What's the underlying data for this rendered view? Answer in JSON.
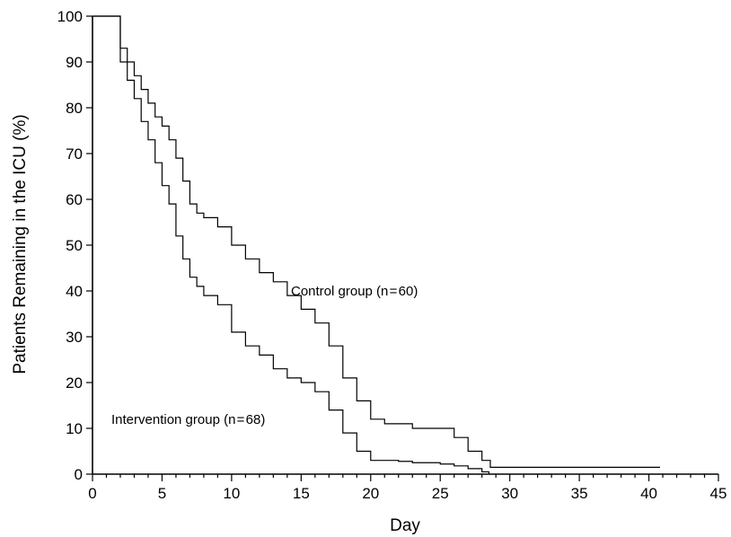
{
  "chart_data": {
    "type": "line",
    "title": "",
    "xlabel": "Day",
    "ylabel": "Patients Remaining in the ICU (%)",
    "xlim": [
      0,
      45
    ],
    "ylim": [
      0,
      100
    ],
    "x_ticks": [
      0,
      5,
      10,
      15,
      20,
      25,
      30,
      35,
      40,
      45
    ],
    "y_ticks": [
      0,
      10,
      20,
      30,
      40,
      50,
      60,
      70,
      80,
      90,
      100
    ],
    "grid": false,
    "legend": "none",
    "annotations": [
      {
        "id": "control",
        "text": "Control group (n = 60)"
      },
      {
        "id": "intervention",
        "text": "Intervention group (n = 68)"
      }
    ],
    "series": [
      {
        "id": "control",
        "step": true,
        "x": [
          0,
          1.5,
          2,
          2.5,
          3,
          3.5,
          4,
          4.5,
          5,
          5.5,
          6,
          6.5,
          7,
          7.5,
          8,
          9,
          10,
          11,
          12,
          13,
          14,
          15,
          16,
          17,
          18,
          19,
          20,
          21,
          22,
          23,
          24,
          25,
          26,
          27,
          28,
          28.6,
          29,
          35,
          40.8
        ],
        "y": [
          100,
          100,
          93,
          90,
          87,
          84,
          81,
          78,
          76,
          73,
          69,
          64,
          59,
          57,
          56,
          54,
          50,
          47,
          44,
          42,
          39,
          36,
          33,
          28,
          21,
          16,
          12,
          11,
          11,
          10,
          10,
          10,
          8,
          5,
          3,
          1.5,
          1.5,
          1.5,
          1.5
        ]
      },
      {
        "id": "intervention",
        "step": true,
        "x": [
          0,
          1.5,
          2,
          2.5,
          3,
          3.5,
          4,
          4.5,
          5,
          5.5,
          6,
          6.5,
          7,
          7.5,
          8,
          9,
          10,
          11,
          12,
          13,
          14,
          15,
          16,
          17,
          18,
          19,
          20,
          21,
          22,
          23,
          24,
          25,
          26,
          27,
          28,
          28.5
        ],
        "y": [
          100,
          100,
          90,
          86,
          82,
          77,
          73,
          68,
          63,
          59,
          52,
          47,
          43,
          41,
          39,
          37,
          31,
          28,
          26,
          23,
          21,
          20,
          18,
          14,
          9,
          5,
          3,
          3,
          2.8,
          2.5,
          2.5,
          2.2,
          1.8,
          1.2,
          0.5,
          0
        ]
      }
    ]
  }
}
